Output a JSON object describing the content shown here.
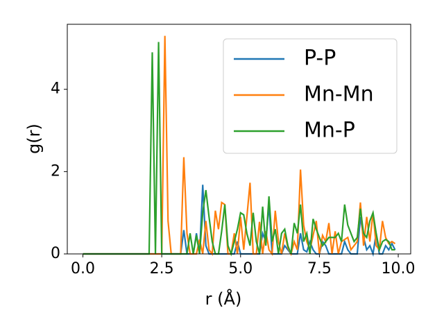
{
  "chart_data": {
    "type": "line",
    "x": [
      0,
      0.1,
      0.2,
      0.3,
      0.4,
      0.5,
      0.6,
      0.7,
      0.8,
      0.9,
      1,
      1.1,
      1.2,
      1.3,
      1.4,
      1.5,
      1.6,
      1.7,
      1.8,
      1.9,
      2,
      2.1,
      2.2,
      2.3,
      2.4,
      2.5,
      2.6,
      2.7,
      2.8,
      2.9,
      3,
      3.1,
      3.2,
      3.3,
      3.4,
      3.5,
      3.6,
      3.7,
      3.8,
      3.9,
      4,
      4.1,
      4.2,
      4.3,
      4.4,
      4.5,
      4.6,
      4.7,
      4.8,
      4.9,
      5,
      5.1,
      5.2,
      5.3,
      5.4,
      5.5,
      5.6,
      5.7,
      5.8,
      5.9,
      6,
      6.1,
      6.2,
      6.3,
      6.4,
      6.5,
      6.6,
      6.7,
      6.8,
      6.9,
      7,
      7.1,
      7.2,
      7.3,
      7.4,
      7.5,
      7.6,
      7.7,
      7.8,
      7.9,
      8,
      8.1,
      8.2,
      8.3,
      8.4,
      8.5,
      8.6,
      8.7,
      8.8,
      8.9,
      9,
      9.1,
      9.2,
      9.3,
      9.4,
      9.5,
      9.6,
      9.7,
      9.8,
      9.9
    ],
    "series": [
      {
        "name": "P-P",
        "color": "#1f77b4",
        "values": [
          0,
          0,
          0,
          0,
          0,
          0,
          0,
          0,
          0,
          0,
          0,
          0,
          0,
          0,
          0,
          0,
          0,
          0,
          0,
          0,
          0,
          0,
          0,
          0,
          0,
          0,
          0,
          0,
          0,
          0,
          0,
          0,
          0.58,
          0,
          0,
          0,
          0.5,
          0,
          1.68,
          0.2,
          0,
          0,
          0,
          0,
          0,
          0,
          0,
          0,
          0,
          0.3,
          0,
          0,
          0,
          0,
          0,
          0,
          0,
          0.5,
          0.3,
          1.2,
          0,
          0,
          0,
          0,
          0.2,
          0.1,
          0,
          0,
          0,
          0.5,
          0.1,
          0.05,
          0.3,
          0.1,
          0,
          0,
          0.3,
          0.2,
          0,
          0,
          0,
          0,
          0,
          0.3,
          0.1,
          0,
          0,
          0,
          0.9,
          0.4,
          0.1,
          0.2,
          0,
          0.5,
          0,
          0,
          0.2,
          0.1,
          0.25,
          0.1
        ]
      },
      {
        "name": "Mn-Mn",
        "color": "#ff7f0e",
        "values": [
          0,
          0,
          0,
          0,
          0,
          0,
          0,
          0,
          0,
          0,
          0,
          0,
          0,
          0,
          0,
          0,
          0,
          0,
          0,
          0,
          0,
          0,
          0,
          0,
          0,
          0,
          5.3,
          0.8,
          0,
          0,
          0,
          0,
          2.35,
          0.5,
          0,
          0,
          0,
          0.35,
          0,
          0.8,
          0.1,
          0,
          1.05,
          0.6,
          1.25,
          1.2,
          0,
          0,
          0.5,
          0,
          0.9,
          0.1,
          0.9,
          1.73,
          0,
          0,
          0.78,
          0,
          0.55,
          0.1,
          0,
          1.05,
          0.3,
          0,
          0.5,
          0.15,
          0,
          0.3,
          0.1,
          2.05,
          0.7,
          0.3,
          0.1,
          0.45,
          0.8,
          0,
          0.45,
          0.3,
          0.75,
          0,
          0.55,
          0,
          0.3,
          0.35,
          0.4,
          0.1,
          0.2,
          0.3,
          1.25,
          0.2,
          0.9,
          0.3,
          1.0,
          0.2,
          0.1,
          0.8,
          0.4,
          0.25,
          0.3,
          0.25
        ]
      },
      {
        "name": "Mn-P",
        "color": "#2ca02c",
        "values": [
          0,
          0,
          0,
          0,
          0,
          0,
          0,
          0,
          0,
          0,
          0,
          0,
          0,
          0,
          0,
          0,
          0,
          0,
          0,
          0,
          0,
          0,
          4.9,
          0,
          5.15,
          0,
          0,
          0,
          0,
          0,
          0,
          0,
          0,
          0,
          0.5,
          0,
          0.45,
          0,
          1.0,
          1.55,
          0.9,
          0.3,
          0,
          0,
          0.55,
          1.2,
          0.2,
          0,
          0.3,
          0.6,
          1.0,
          0.95,
          0.5,
          0.2,
          1.0,
          0.3,
          0,
          1.15,
          0.2,
          1.4,
          0.3,
          0.6,
          0,
          0.5,
          0.6,
          0.2,
          0,
          0.75,
          0.5,
          1.2,
          0.3,
          0.5,
          0,
          0.85,
          0.6,
          0.4,
          0.2,
          0.3,
          0.4,
          0.4,
          0.4,
          0.5,
          0.3,
          1.2,
          0.7,
          0.5,
          0.3,
          0.4,
          1.1,
          0.5,
          0.4,
          0.8,
          1.0,
          0.5,
          0.1,
          0.3,
          0.35,
          0.3,
          0.1,
          0.1
        ]
      }
    ],
    "xlabel": "r (Å)",
    "ylabel": "g(r)",
    "xlim": [
      -0.495,
      10.395
    ],
    "ylim": [
      0,
      5.58
    ],
    "xticks": [
      {
        "value": 0,
        "label": "0.0"
      },
      2.5,
      {
        "value": 5,
        "label": "5.0"
      },
      7.5,
      {
        "value": 10,
        "label": "10.0"
      }
    ],
    "yticks": [
      0,
      2,
      4
    ],
    "legend": "upper right"
  }
}
